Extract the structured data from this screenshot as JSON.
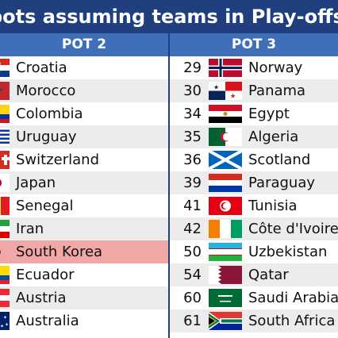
{
  "title": "pots assuming teams in Play-offs",
  "pot2_header": "POT 2",
  "pot3_header": "POT 3",
  "pot2": [
    {
      "name": "Croatia",
      "flag": "croatia-flag"
    },
    {
      "name": "Morocco",
      "flag": "morocco-flag"
    },
    {
      "name": "Colombia",
      "flag": "colombia-flag"
    },
    {
      "name": "Uruguay",
      "flag": "uruguay-flag"
    },
    {
      "name": "Switzerland",
      "flag": "switzerland-flag"
    },
    {
      "name": "Japan",
      "flag": "japan-flag"
    },
    {
      "name": "Senegal",
      "flag": "senegal-flag"
    },
    {
      "name": "Iran",
      "flag": "iran-flag"
    },
    {
      "name": "South Korea",
      "flag": "south-korea-flag",
      "highlighted": true
    },
    {
      "name": "Ecuador",
      "flag": "ecuador-flag"
    },
    {
      "name": "Austria",
      "flag": "austria-flag"
    },
    {
      "name": "Australia",
      "flag": "australia-flag"
    }
  ],
  "pot3": [
    {
      "rank": "29",
      "name": "Norway",
      "flag": "norway-flag"
    },
    {
      "rank": "30",
      "name": "Panama",
      "flag": "panama-flag"
    },
    {
      "rank": "34",
      "name": "Egypt",
      "flag": "egypt-flag"
    },
    {
      "rank": "35",
      "name": "Algeria",
      "flag": "algeria-flag"
    },
    {
      "rank": "36",
      "name": "Scotland",
      "flag": "scotland-flag"
    },
    {
      "rank": "39",
      "name": "Paraguay",
      "flag": "paraguay-flag"
    },
    {
      "rank": "41",
      "name": "Tunisia",
      "flag": "tunisia-flag"
    },
    {
      "rank": "42",
      "name": "Côte d'Ivoire",
      "flag": "cote-divoire-flag"
    },
    {
      "rank": "50",
      "name": "Uzbekistan",
      "flag": "uzbekistan-flag"
    },
    {
      "rank": "54",
      "name": "Qatar",
      "flag": "qatar-flag"
    },
    {
      "rank": "60",
      "name": "Saudi Arabia",
      "flag": "saudi-arabia-flag"
    },
    {
      "rank": "61",
      "name": "South Africa",
      "flag": "south-africa-flag"
    }
  ],
  "colors": {
    "title_bg": "#1f3f7f",
    "header_bg": "#3e6fb8",
    "highlight": "#f2a7a7",
    "alt_row": "#ececec"
  }
}
